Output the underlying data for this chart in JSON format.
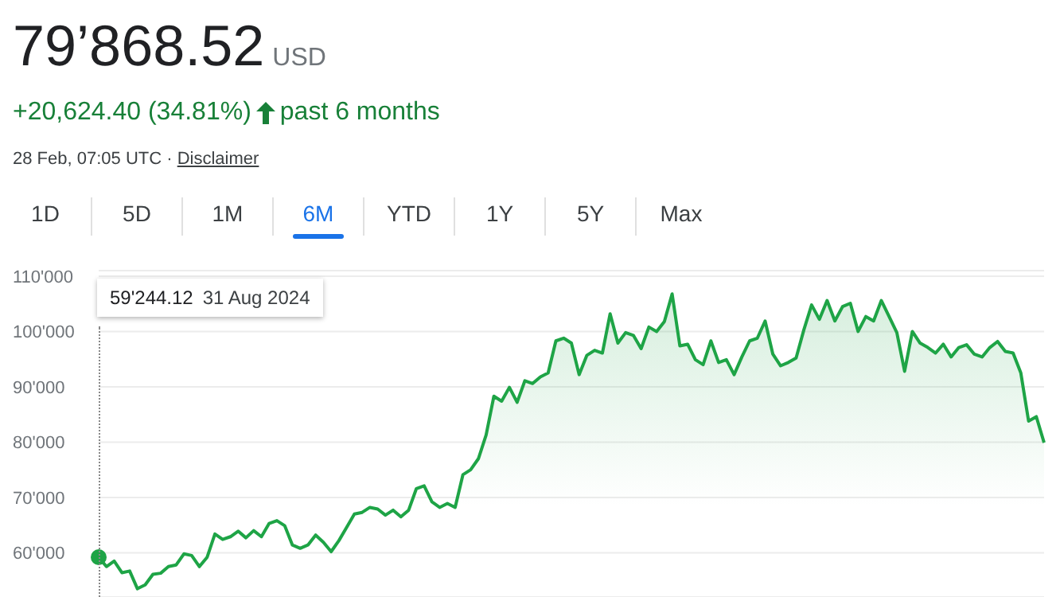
{
  "chart_data": {
    "type": "area",
    "title": "79’868.52",
    "subtitle": "+20,624.40 (34.81%)",
    "annotations": [
      "USD",
      "past 6 months",
      "28 Feb, 07:05 UTC ·",
      "Disclaimer",
      "1D",
      "5D",
      "1M",
      "6M",
      "YTD",
      "1Y",
      "5Y",
      "Max",
      "59'244.12",
      "31 Aug 2024"
    ],
    "categories": [
      null,
      null,
      null,
      null,
      null,
      null,
      null,
      null,
      null,
      null,
      null,
      null,
      null,
      null,
      null,
      null,
      null,
      null,
      null,
      null,
      null,
      null,
      null,
      null,
      null,
      null,
      null,
      null,
      null,
      null,
      null,
      null,
      null,
      null,
      null,
      null,
      null,
      null,
      null,
      null,
      null,
      null,
      null,
      null,
      null,
      null,
      null,
      null,
      null,
      null,
      null,
      null,
      null,
      null,
      null,
      null,
      null,
      null,
      null,
      null,
      null,
      null,
      null,
      null,
      null,
      null,
      null,
      null,
      null,
      null,
      null,
      null,
      null,
      null,
      null,
      null,
      null,
      null,
      null,
      null,
      null,
      null,
      null,
      null,
      null,
      null,
      null,
      null,
      null,
      null,
      null,
      null,
      null,
      null,
      null,
      null,
      null,
      null,
      null,
      null,
      null,
      null,
      null,
      null,
      null,
      null,
      null,
      null,
      null,
      null,
      null,
      null,
      null,
      null,
      null,
      null,
      null,
      null,
      null,
      null,
      null,
      null,
      null
    ],
    "series": [
      {
        "color": "#1ea446",
        "values": [
          59200,
          57500,
          58500,
          56400,
          56700,
          53500,
          54200,
          56100,
          56300,
          57500,
          57800,
          59800,
          59500,
          57500,
          59200,
          63400,
          62400,
          62900,
          63900,
          62700,
          64000,
          62900,
          65300,
          65800,
          64900,
          61400,
          60800,
          61400,
          63200,
          61900,
          60200,
          62200,
          64600,
          67000,
          67300,
          68200,
          67900,
          66800,
          67700,
          66500,
          67700,
          71600,
          72100,
          69200,
          68200,
          68900,
          68200,
          74100,
          75000,
          77000,
          81300,
          88300,
          87400,
          89900,
          87200,
          91100,
          90600,
          91800,
          92500,
          98300,
          98800,
          97900,
          92200,
          95700,
          96600,
          96100,
          103200,
          97900,
          99800,
          99300,
          96900,
          100800,
          100000,
          101800,
          106800,
          97400,
          97700,
          94900,
          94000,
          98300,
          94400,
          94900,
          92200,
          95400,
          98300,
          98800,
          101900,
          95900,
          93800,
          94400,
          95200,
          100300,
          104800,
          102200,
          105600,
          101900,
          104500,
          105100,
          100000,
          102700,
          101900,
          105600,
          102700,
          99800,
          92800,
          100000,
          97900,
          97100,
          96100,
          97700,
          95400,
          97100,
          97600,
          95900,
          95400,
          97100,
          98200,
          96400,
          96100,
          92500,
          83800,
          84600,
          79900
        ]
      }
    ],
    "ylim": [
      52000,
      111000
    ],
    "yticks": [
      {
        "value": 60000,
        "label": "60'000"
      },
      {
        "value": 70000,
        "label": "70'000"
      },
      {
        "value": 80000,
        "label": "80'000"
      },
      {
        "value": 90000,
        "label": "90'000"
      },
      {
        "value": 100000,
        "label": "100'000"
      },
      {
        "value": 110000,
        "label": "110'000"
      }
    ],
    "grid": "y",
    "tick_labels": "y"
  }
}
